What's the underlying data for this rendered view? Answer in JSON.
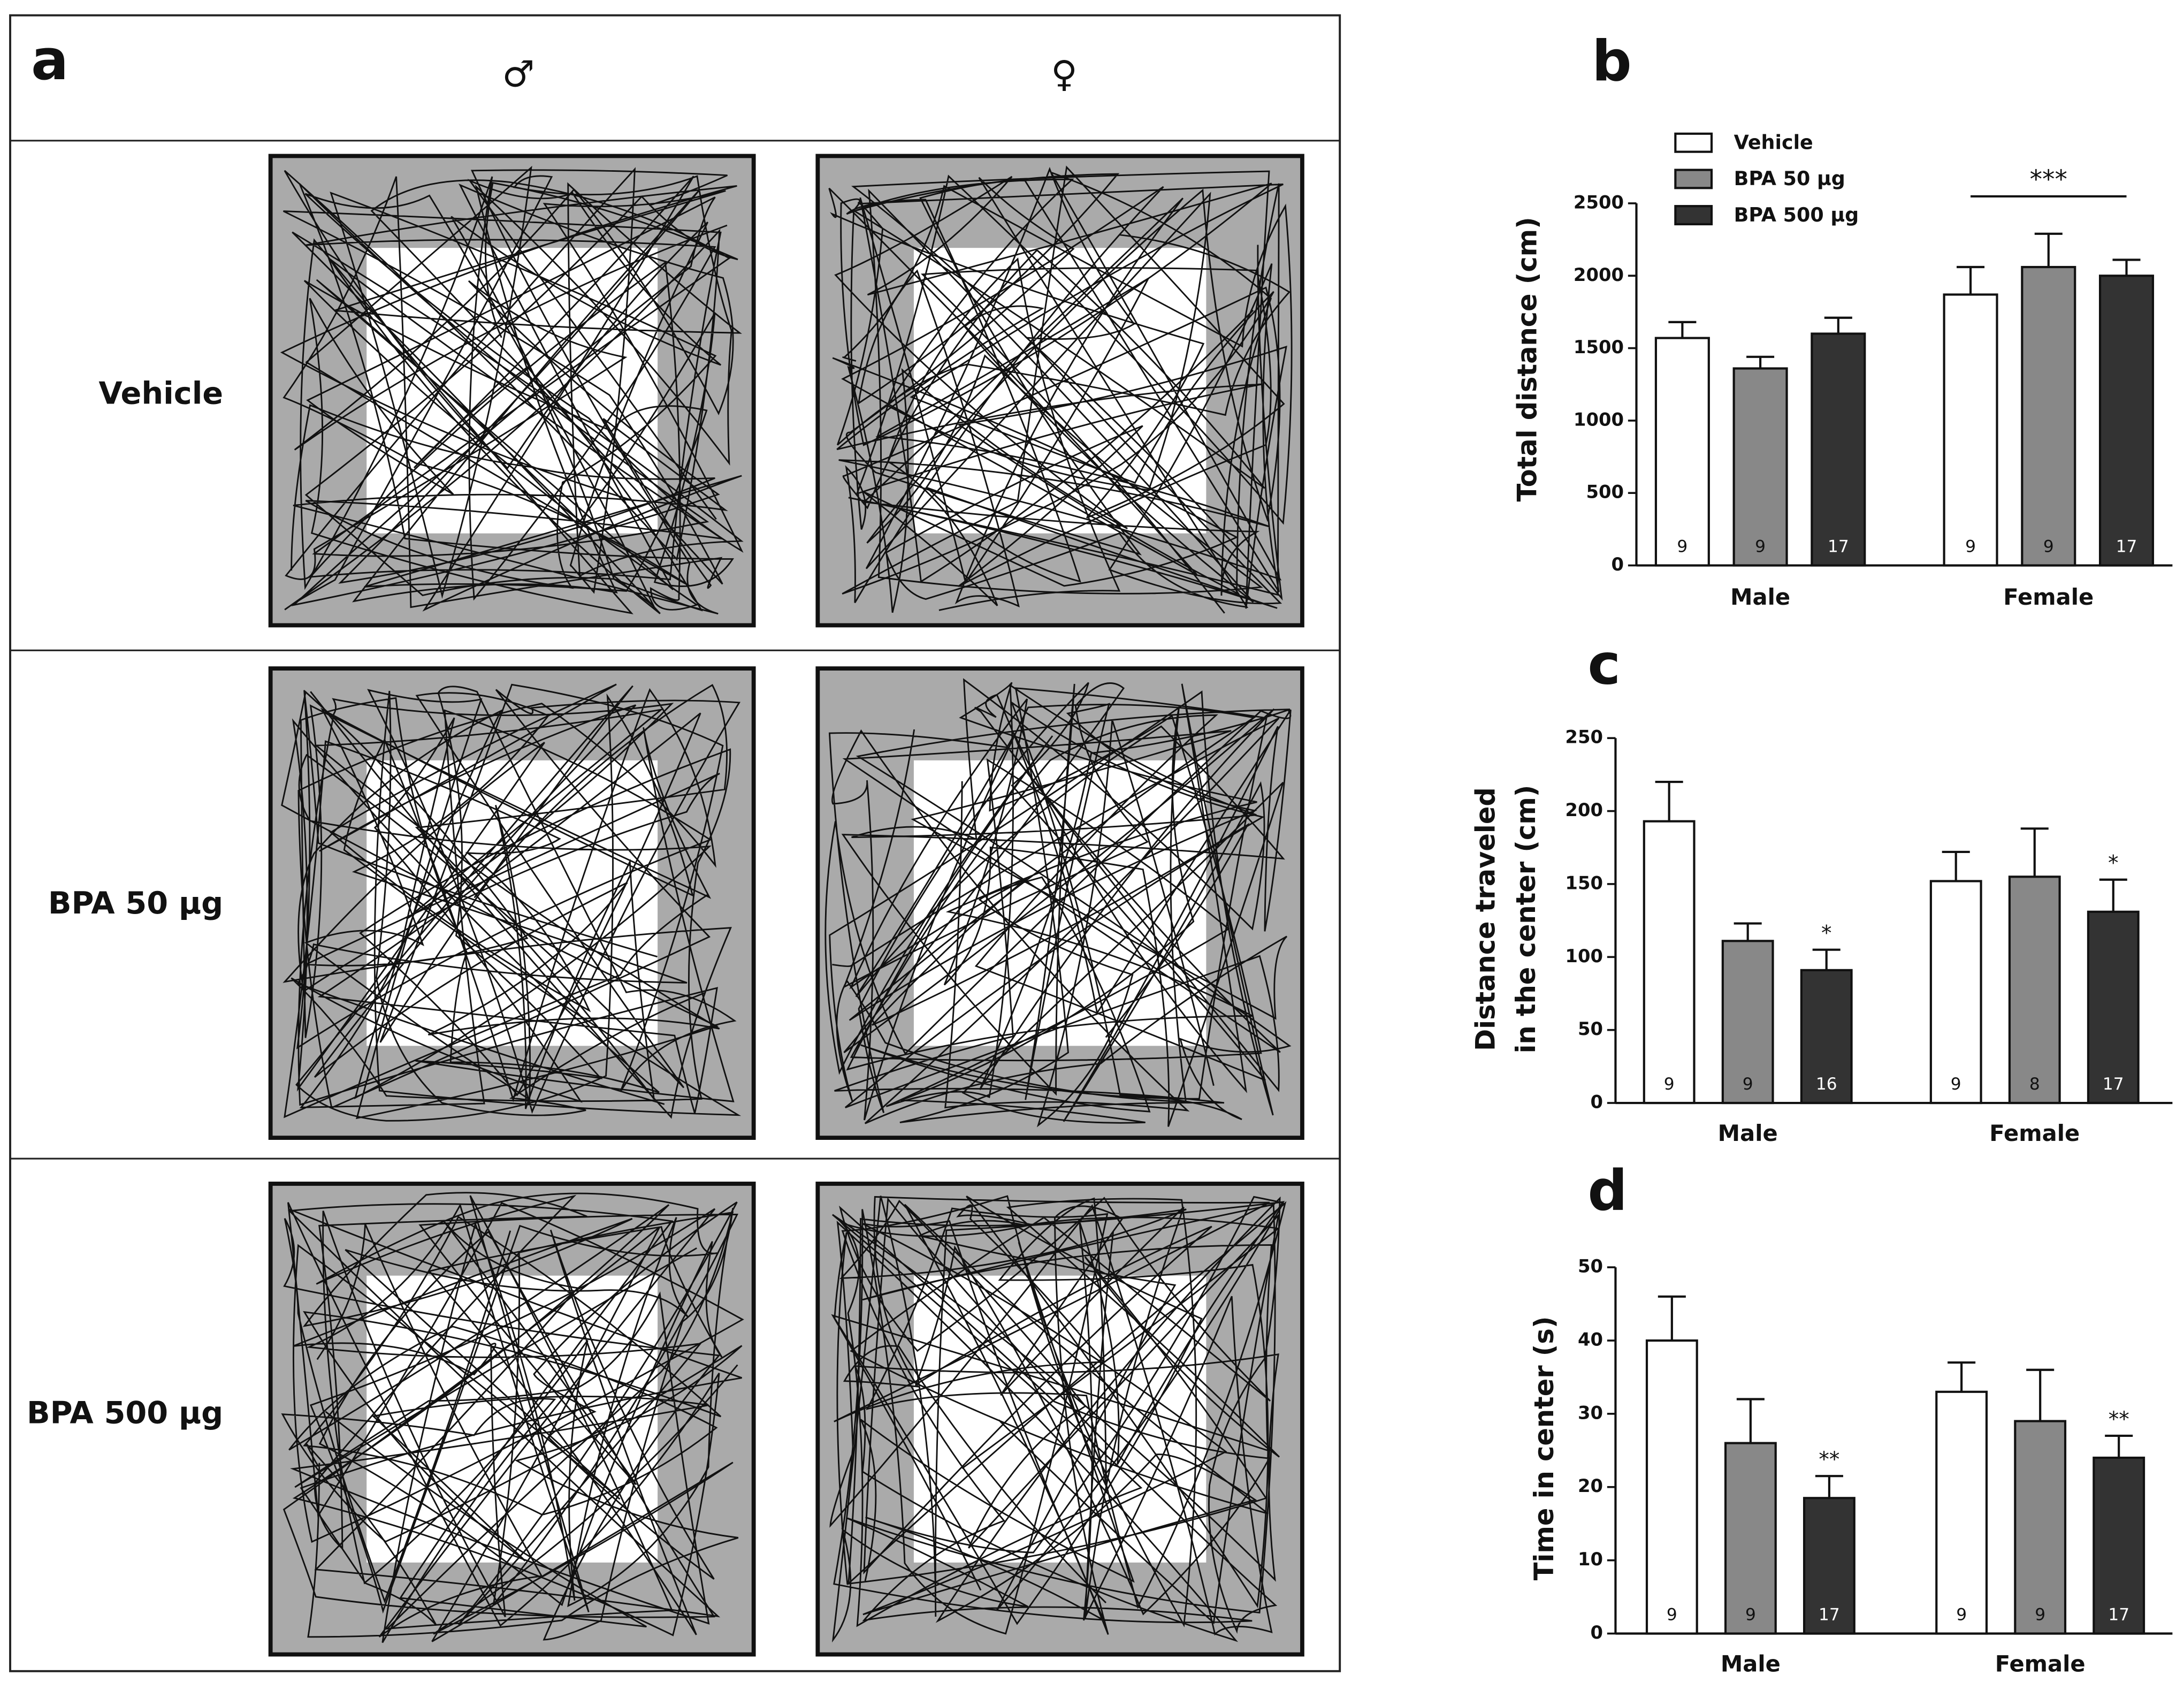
{
  "panel_a": {
    "panel_label": "a",
    "columns": [
      "♂",
      "♀"
    ],
    "rows": [
      "Vehicle",
      "BPA 50 µg",
      "BPA 500 µg"
    ]
  },
  "chart_data": [
    {
      "type": "bar",
      "panel_label": "b",
      "ylabel": [
        "Total distance (cm)"
      ],
      "categories": [
        "Male",
        "Female"
      ],
      "ylim": [
        0,
        2500
      ],
      "yticks": [
        0,
        500,
        1000,
        1500,
        2000,
        2500
      ],
      "legend": true,
      "group_annotations": [
        null,
        "***"
      ],
      "series": [
        {
          "name": "Vehicle",
          "color": "#ffffff",
          "values": [
            1570,
            1870
          ],
          "errors": [
            110,
            190
          ],
          "n": [
            9,
            9
          ],
          "annotations": [
            null,
            null
          ]
        },
        {
          "name": "BPA 50 µg",
          "color": "#888888",
          "values": [
            1360,
            2060
          ],
          "errors": [
            80,
            230
          ],
          "n": [
            9,
            9
          ],
          "annotations": [
            null,
            null
          ]
        },
        {
          "name": "BPA 500 µg",
          "color": "#333333",
          "values": [
            1600,
            2000
          ],
          "errors": [
            110,
            110
          ],
          "n": [
            17,
            17
          ],
          "annotations": [
            null,
            null
          ]
        }
      ]
    },
    {
      "type": "bar",
      "panel_label": "c",
      "ylabel": [
        "Distance traveled",
        "in the center (cm)"
      ],
      "categories": [
        "Male",
        "Female"
      ],
      "ylim": [
        0,
        250
      ],
      "yticks": [
        0,
        50,
        100,
        150,
        200,
        250
      ],
      "legend": false,
      "group_annotations": [
        null,
        null
      ],
      "series": [
        {
          "name": "Vehicle",
          "color": "#ffffff",
          "values": [
            193,
            152
          ],
          "errors": [
            27,
            20
          ],
          "n": [
            9,
            9
          ],
          "annotations": [
            null,
            null
          ]
        },
        {
          "name": "BPA 50 µg",
          "color": "#888888",
          "values": [
            111,
            155
          ],
          "errors": [
            12,
            33
          ],
          "n": [
            9,
            8
          ],
          "annotations": [
            null,
            null
          ]
        },
        {
          "name": "BPA 500 µg",
          "color": "#333333",
          "values": [
            91,
            131
          ],
          "errors": [
            14,
            22
          ],
          "n": [
            16,
            17
          ],
          "annotations": [
            "*",
            "*"
          ]
        }
      ]
    },
    {
      "type": "bar",
      "panel_label": "d",
      "ylabel": [
        "Time in center (s)"
      ],
      "categories": [
        "Male",
        "Female"
      ],
      "ylim": [
        0,
        50
      ],
      "yticks": [
        0,
        10,
        20,
        30,
        40,
        50
      ],
      "legend": false,
      "group_annotations": [
        null,
        null
      ],
      "series": [
        {
          "name": "Vehicle",
          "color": "#ffffff",
          "values": [
            40,
            33
          ],
          "errors": [
            6,
            4
          ],
          "n": [
            9,
            9
          ],
          "annotations": [
            null,
            null
          ]
        },
        {
          "name": "BPA 50 µg",
          "color": "#888888",
          "values": [
            26,
            29
          ],
          "errors": [
            6,
            7
          ],
          "n": [
            9,
            9
          ],
          "annotations": [
            null,
            null
          ]
        },
        {
          "name": "BPA 500 µg",
          "color": "#333333",
          "values": [
            18.5,
            24
          ],
          "errors": [
            3,
            3
          ],
          "n": [
            17,
            17
          ],
          "annotations": [
            "**",
            "**"
          ]
        }
      ]
    }
  ]
}
